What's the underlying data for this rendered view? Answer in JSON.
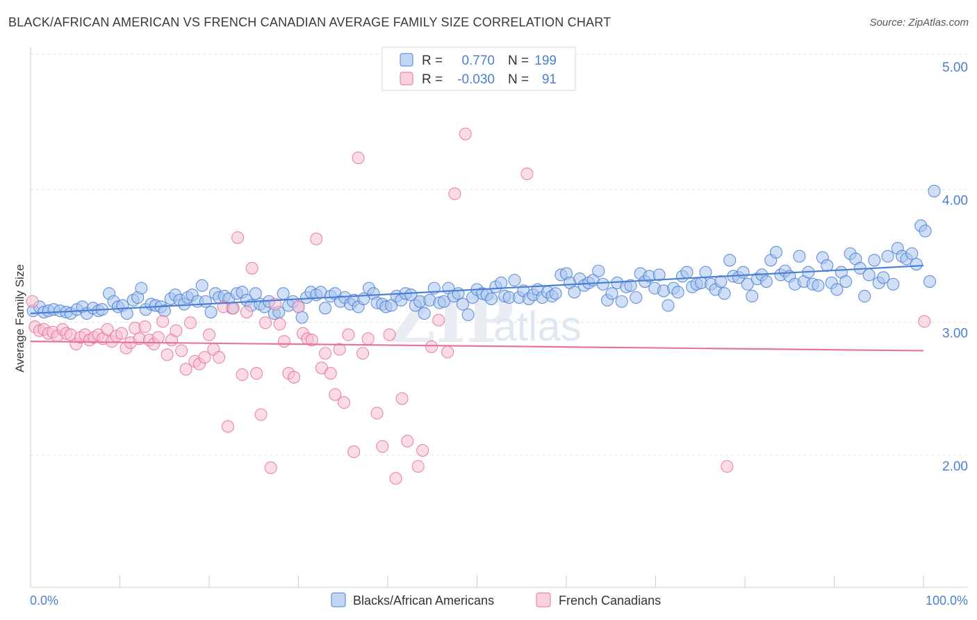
{
  "title": "BLACK/AFRICAN AMERICAN VS FRENCH CANADIAN AVERAGE FAMILY SIZE CORRELATION CHART",
  "source": "Source: ZipAtlas.com",
  "watermark": {
    "part1": "ZIP",
    "part2": "atlas"
  },
  "colors": {
    "blue": "#4a7fd4",
    "blue_fill": "#a9c5ef",
    "pink": "#e8729a",
    "pink_fill": "#f6bfd0"
  },
  "chart_data": {
    "type": "scatter",
    "title": "BLACK/AFRICAN AMERICAN VS FRENCH CANADIAN AVERAGE FAMILY SIZE CORRELATION CHART",
    "xlabel": "",
    "ylabel": "Average Family Size",
    "xlim": [
      0,
      100
    ],
    "ylim": [
      1.0,
      5.1
    ],
    "x_tick_labels": [
      "0.0%",
      "100.0%"
    ],
    "y_ticks": [
      2.0,
      3.0,
      4.0,
      5.0
    ],
    "y_tick_labels": [
      "2.00",
      "3.00",
      "4.00",
      "5.00"
    ],
    "grid": "horizontal dashed",
    "legend_position": "top-center",
    "series": [
      {
        "name": "Blacks/African Americans",
        "color": "#4a7fd4",
        "R": "0.770",
        "N": "199",
        "trend": {
          "x": [
            0,
            100
          ],
          "y": [
            3.15,
            3.51
          ]
        },
        "points": [
          [
            0.3,
            3.17
          ],
          [
            1,
            3.2
          ],
          [
            1.5,
            3.16
          ],
          [
            2,
            3.17
          ],
          [
            2.6,
            3.18
          ],
          [
            3.3,
            3.17
          ],
          [
            4,
            3.16
          ],
          [
            4.5,
            3.15
          ],
          [
            5.2,
            3.18
          ],
          [
            5.8,
            3.2
          ],
          [
            6.3,
            3.15
          ],
          [
            7,
            3.19
          ],
          [
            7.6,
            3.17
          ],
          [
            8,
            3.18
          ],
          [
            8.8,
            3.3
          ],
          [
            9.3,
            3.24
          ],
          [
            9.8,
            3.2
          ],
          [
            10.3,
            3.21
          ],
          [
            10.8,
            3.15
          ],
          [
            11.5,
            3.25
          ],
          [
            12,
            3.27
          ],
          [
            12.4,
            3.34
          ],
          [
            12.9,
            3.18
          ],
          [
            13.5,
            3.22
          ],
          [
            14,
            3.21
          ],
          [
            14.6,
            3.2
          ],
          [
            15,
            3.17
          ],
          [
            15.7,
            3.26
          ],
          [
            16.2,
            3.29
          ],
          [
            16.7,
            3.25
          ],
          [
            17.2,
            3.22
          ],
          [
            17.6,
            3.27
          ],
          [
            18.1,
            3.29
          ],
          [
            18.7,
            3.24
          ],
          [
            19.2,
            3.36
          ],
          [
            19.6,
            3.24
          ],
          [
            20.2,
            3.16
          ],
          [
            20.7,
            3.3
          ],
          [
            21.1,
            3.27
          ],
          [
            21.7,
            3.28
          ],
          [
            22.2,
            3.26
          ],
          [
            22.6,
            3.19
          ],
          [
            23.1,
            3.3
          ],
          [
            23.7,
            3.31
          ],
          [
            24.2,
            3.25
          ],
          [
            24.7,
            3.21
          ],
          [
            25.2,
            3.3
          ],
          [
            25.7,
            3.22
          ],
          [
            26.2,
            3.2
          ],
          [
            26.7,
            3.24
          ],
          [
            27.3,
            3.15
          ],
          [
            27.8,
            3.16
          ],
          [
            28.3,
            3.3
          ],
          [
            28.9,
            3.21
          ],
          [
            29.4,
            3.24
          ],
          [
            30,
            3.2
          ],
          [
            30.4,
            3.12
          ],
          [
            30.9,
            3.27
          ],
          [
            31.4,
            3.31
          ],
          [
            32,
            3.29
          ],
          [
            32.5,
            3.31
          ],
          [
            33,
            3.19
          ],
          [
            33.6,
            3.28
          ],
          [
            34.1,
            3.3
          ],
          [
            34.7,
            3.24
          ],
          [
            35.2,
            3.27
          ],
          [
            35.8,
            3.22
          ],
          [
            36.2,
            3.25
          ],
          [
            36.7,
            3.2
          ],
          [
            37.3,
            3.26
          ],
          [
            37.9,
            3.34
          ],
          [
            38.4,
            3.3
          ],
          [
            38.8,
            3.23
          ],
          [
            39.4,
            3.22
          ],
          [
            39.8,
            3.2
          ],
          [
            40.4,
            3.21
          ],
          [
            41,
            3.28
          ],
          [
            41.5,
            3.25
          ],
          [
            42,
            3.3
          ],
          [
            42.6,
            3.29
          ],
          [
            43.1,
            3.21
          ],
          [
            43.6,
            3.24
          ],
          [
            44.1,
            3.15
          ],
          [
            44.7,
            3.25
          ],
          [
            45.2,
            3.34
          ],
          [
            45.8,
            3.23
          ],
          [
            46.3,
            3.24
          ],
          [
            46.8,
            3.34
          ],
          [
            47.4,
            3.28
          ],
          [
            47.9,
            3.3
          ],
          [
            48.4,
            3.22
          ],
          [
            49,
            3.14
          ],
          [
            49.5,
            3.27
          ],
          [
            50,
            3.33
          ],
          [
            50.6,
            3.3
          ],
          [
            51.1,
            3.29
          ],
          [
            51.6,
            3.26
          ],
          [
            52.1,
            3.35
          ],
          [
            52.7,
            3.38
          ],
          [
            53.1,
            3.28
          ],
          [
            53.6,
            3.27
          ],
          [
            54.2,
            3.4
          ],
          [
            54.7,
            3.27
          ],
          [
            55.2,
            3.32
          ],
          [
            55.8,
            3.26
          ],
          [
            56.3,
            3.29
          ],
          [
            56.8,
            3.33
          ],
          [
            57.3,
            3.27
          ],
          [
            57.9,
            3.31
          ],
          [
            58.4,
            3.28
          ],
          [
            58.8,
            3.3
          ],
          [
            59.4,
            3.44
          ],
          [
            60,
            3.45
          ],
          [
            60.4,
            3.38
          ],
          [
            60.9,
            3.31
          ],
          [
            61.5,
            3.41
          ],
          [
            62,
            3.36
          ],
          [
            62.5,
            3.38
          ],
          [
            63,
            3.4
          ],
          [
            63.6,
            3.47
          ],
          [
            64.1,
            3.37
          ],
          [
            64.6,
            3.25
          ],
          [
            65.1,
            3.3
          ],
          [
            65.7,
            3.38
          ],
          [
            66.2,
            3.24
          ],
          [
            66.7,
            3.35
          ],
          [
            67.2,
            3.36
          ],
          [
            67.8,
            3.27
          ],
          [
            68.3,
            3.45
          ],
          [
            68.8,
            3.39
          ],
          [
            69.3,
            3.43
          ],
          [
            69.9,
            3.34
          ],
          [
            70.4,
            3.44
          ],
          [
            70.9,
            3.32
          ],
          [
            71.4,
            3.21
          ],
          [
            72,
            3.34
          ],
          [
            72.5,
            3.31
          ],
          [
            73,
            3.43
          ],
          [
            73.5,
            3.46
          ],
          [
            74.1,
            3.35
          ],
          [
            74.6,
            3.37
          ],
          [
            75.1,
            3.38
          ],
          [
            75.6,
            3.46
          ],
          [
            76.2,
            3.37
          ],
          [
            76.7,
            3.33
          ],
          [
            77.3,
            3.39
          ],
          [
            77.7,
            3.3
          ],
          [
            78.3,
            3.55
          ],
          [
            78.7,
            3.43
          ],
          [
            79.3,
            3.42
          ],
          [
            79.8,
            3.46
          ],
          [
            80.3,
            3.37
          ],
          [
            80.8,
            3.28
          ],
          [
            81.4,
            3.41
          ],
          [
            81.9,
            3.44
          ],
          [
            82.4,
            3.39
          ],
          [
            82.9,
            3.55
          ],
          [
            83.5,
            3.61
          ],
          [
            84,
            3.44
          ],
          [
            84.5,
            3.47
          ],
          [
            85,
            3.43
          ],
          [
            85.6,
            3.37
          ],
          [
            86.1,
            3.58
          ],
          [
            86.6,
            3.39
          ],
          [
            87.1,
            3.46
          ],
          [
            87.6,
            3.37
          ],
          [
            88.2,
            3.36
          ],
          [
            88.7,
            3.57
          ],
          [
            89.2,
            3.51
          ],
          [
            89.7,
            3.38
          ],
          [
            90.3,
            3.33
          ],
          [
            90.8,
            3.46
          ],
          [
            91.3,
            3.39
          ],
          [
            91.8,
            3.6
          ],
          [
            92.4,
            3.56
          ],
          [
            92.9,
            3.49
          ],
          [
            93.4,
            3.28
          ],
          [
            93.9,
            3.44
          ],
          [
            94.5,
            3.55
          ],
          [
            95,
            3.38
          ],
          [
            95.5,
            3.42
          ],
          [
            96,
            3.58
          ],
          [
            96.6,
            3.37
          ],
          [
            97.1,
            3.64
          ],
          [
            97.6,
            3.58
          ],
          [
            98.1,
            3.56
          ],
          [
            98.7,
            3.6
          ],
          [
            99.2,
            3.52
          ],
          [
            99.7,
            3.81
          ],
          [
            100.2,
            3.77
          ],
          [
            100.7,
            3.39
          ],
          [
            101.2,
            4.07
          ]
        ]
      },
      {
        "name": "French Canadians",
        "color": "#e8729a",
        "R": "-0.030",
        "N": "91",
        "trend": {
          "x": [
            0,
            100
          ],
          "y": [
            2.94,
            2.87
          ]
        },
        "points": [
          [
            0.2,
            3.24
          ],
          [
            0.5,
            3.05
          ],
          [
            1,
            3.02
          ],
          [
            1.5,
            3.03
          ],
          [
            2,
            3.0
          ],
          [
            2.5,
            3.01
          ],
          [
            3,
            2.98
          ],
          [
            3.6,
            3.03
          ],
          [
            4,
            3.0
          ],
          [
            4.5,
            2.99
          ],
          [
            5.1,
            2.92
          ],
          [
            5.6,
            2.97
          ],
          [
            6.1,
            2.99
          ],
          [
            6.6,
            2.95
          ],
          [
            7.1,
            2.97
          ],
          [
            7.6,
            2.99
          ],
          [
            8.1,
            2.96
          ],
          [
            8.6,
            3.03
          ],
          [
            9.1,
            2.94
          ],
          [
            9.6,
            2.98
          ],
          [
            10.2,
            3.0
          ],
          [
            10.7,
            2.89
          ],
          [
            11.2,
            2.93
          ],
          [
            11.7,
            3.04
          ],
          [
            12.2,
            2.96
          ],
          [
            12.8,
            3.05
          ],
          [
            13.3,
            2.95
          ],
          [
            13.8,
            2.92
          ],
          [
            14.3,
            2.97
          ],
          [
            14.8,
            3.09
          ],
          [
            15.3,
            2.84
          ],
          [
            15.8,
            2.95
          ],
          [
            16.3,
            3.02
          ],
          [
            16.9,
            2.87
          ],
          [
            17.4,
            2.73
          ],
          [
            17.9,
            3.08
          ],
          [
            18.4,
            2.79
          ],
          [
            18.9,
            2.77
          ],
          [
            19.5,
            2.82
          ],
          [
            20,
            2.99
          ],
          [
            20.5,
            2.88
          ],
          [
            21.1,
            2.82
          ],
          [
            21.6,
            3.2
          ],
          [
            22.1,
            2.3
          ],
          [
            22.7,
            3.19
          ],
          [
            23.2,
            3.72
          ],
          [
            23.7,
            2.69
          ],
          [
            24.2,
            3.16
          ],
          [
            24.8,
            3.49
          ],
          [
            25.3,
            2.7
          ],
          [
            25.8,
            2.39
          ],
          [
            26.3,
            3.08
          ],
          [
            26.9,
            1.99
          ],
          [
            27.4,
            3.22
          ],
          [
            27.9,
            3.07
          ],
          [
            28.4,
            2.94
          ],
          [
            28.9,
            2.7
          ],
          [
            29.5,
            2.67
          ],
          [
            30,
            3.2
          ],
          [
            30.5,
            3.0
          ],
          [
            31,
            2.96
          ],
          [
            31.5,
            2.95
          ],
          [
            32,
            3.71
          ],
          [
            32.6,
            2.74
          ],
          [
            33,
            2.85
          ],
          [
            33.6,
            2.7
          ],
          [
            34.1,
            2.54
          ],
          [
            34.6,
            2.88
          ],
          [
            35.1,
            2.48
          ],
          [
            35.6,
            2.99
          ],
          [
            36.2,
            2.11
          ],
          [
            36.7,
            4.32
          ],
          [
            37.2,
            2.85
          ],
          [
            37.8,
            2.96
          ],
          [
            38.8,
            2.4
          ],
          [
            39.4,
            2.15
          ],
          [
            40.2,
            2.99
          ],
          [
            40.9,
            1.91
          ],
          [
            41.6,
            2.51
          ],
          [
            42.2,
            2.19
          ],
          [
            43.4,
            2.0
          ],
          [
            43.9,
            2.12
          ],
          [
            44.9,
            2.9
          ],
          [
            45.7,
            3.1
          ],
          [
            46.7,
            2.86
          ],
          [
            47.5,
            4.05
          ],
          [
            48.7,
            4.5
          ],
          [
            55.6,
            4.2
          ],
          [
            78,
            2.0
          ],
          [
            100.1,
            3.09
          ]
        ]
      }
    ]
  }
}
